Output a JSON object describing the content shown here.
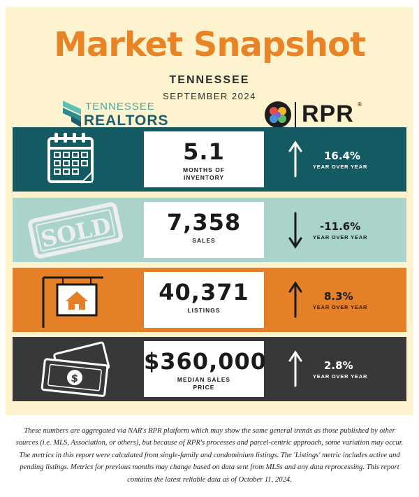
{
  "header": {
    "title": "Market Snapshot",
    "state": "TENNESSEE",
    "period": "SEPTEMBER 2024"
  },
  "logos": {
    "tennessee_realtors": {
      "line1": "TENNESSEE",
      "line2": "REALTORS",
      "icon": "tennessee-realtors-mark-icon"
    },
    "rpr": {
      "text": "RPR",
      "reg": "®",
      "icon": "rpr-flower-icon"
    }
  },
  "colors": {
    "title": "#e88425",
    "row_teal": "#135a63",
    "row_mint": "#a9d3cb",
    "row_orange": "#e58028",
    "row_charcoal": "#383838",
    "background": "#fdf4cf"
  },
  "metrics": [
    {
      "value": "5.1",
      "label_line1": "MONTHS OF",
      "label_line2": "INVENTORY",
      "change": "16.4%",
      "yoy": "YEAR OVER YEAR",
      "direction": "up",
      "icon": "calendar-icon"
    },
    {
      "value": "7,358",
      "label_line1": "SALES",
      "label_line2": "",
      "change": "-11.6%",
      "yoy": "YEAR OVER YEAR",
      "direction": "down",
      "icon": "sold-stamp-icon"
    },
    {
      "value": "40,371",
      "label_line1": "LISTINGS",
      "label_line2": "",
      "change": "8.3%",
      "yoy": "YEAR OVER YEAR",
      "direction": "up",
      "icon": "house-sign-icon"
    },
    {
      "value": "$360,000",
      "label_line1": "MEDIAN SALES",
      "label_line2": "PRICE",
      "change": "2.8%",
      "yoy": "YEAR OVER YEAR",
      "direction": "up",
      "icon": "money-icon"
    }
  ],
  "sold_stamp_text": "SOLD",
  "disclaimer": "These numbers are aggregated via NAR's RPR platform which may show the same general trends as those published by other sources (i.e. MLS, Association, or others), but because of RPR's processes and parcel-centric approach, some variation may occur. The metrics in this report were calculated from single-family and condominium listings. The 'Listings' metric includes active and pending listings. Metrics for previous months may change based on data sent from MLSs and any data reprocessing. This report contains the latest reliable data as of October 11, 2024."
}
